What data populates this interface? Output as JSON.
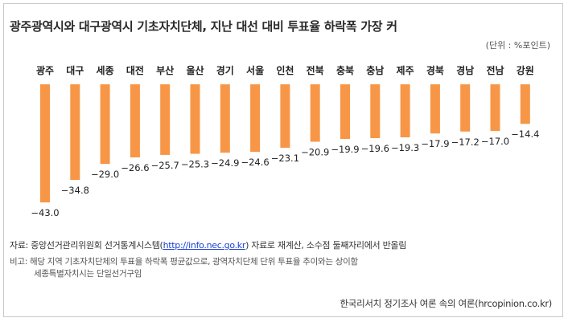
{
  "title": "광주광역시와 대구광역시 기초자치단체, 지난 대선 대비 투표율 하락폭 가장 커",
  "unit_label": "(단위 : %포인트)",
  "source": {
    "prefix": "자료: 중앙선거관리위원회 선거통계시스템(",
    "link": "http://info.nec.go.kr",
    "suffix": ") 자료로 재계산, 소수점 둘째자리에서 반올림"
  },
  "note": {
    "line1": "비고: 해당 지역 기초자치단체의 투표율 하락폭 평균값으로, 광역자치단체 단위 투표율 추이와는 상이함",
    "line2": "세종특별자치시는 단일선거구임"
  },
  "credit": "한국리서치 정기조사 여론 속의 여론(hrcopinion.co.kr)",
  "colors": {
    "bar": "#f79646",
    "text": "#222222"
  },
  "chart_data": {
    "type": "bar",
    "categories": [
      "광주",
      "대구",
      "세종",
      "대전",
      "부산",
      "울산",
      "경기",
      "서울",
      "인천",
      "전북",
      "충북",
      "충남",
      "제주",
      "경북",
      "경남",
      "전남",
      "강원"
    ],
    "values": [
      -43.0,
      -34.8,
      -29.0,
      -26.6,
      -25.7,
      -25.3,
      -24.9,
      -24.6,
      -23.1,
      -20.9,
      -19.9,
      -19.6,
      -19.3,
      -17.9,
      -17.2,
      -17.0,
      -14.4
    ],
    "labels": [
      "−43.0",
      "−34.8",
      "−29.0",
      "−26.6",
      "−25.7",
      "−25.3",
      "−24.9",
      "−24.6",
      "−23.1",
      "−20.9",
      "−19.9",
      "−19.6",
      "−19.3",
      "−17.9",
      "−17.2",
      "−17.0",
      "−14.4"
    ],
    "ylim": [
      -45,
      0
    ],
    "grid": false,
    "title": "광주광역시와 대구광역시 기초자치단체, 지난 대선 대비 투표율 하락폭 가장 커"
  }
}
